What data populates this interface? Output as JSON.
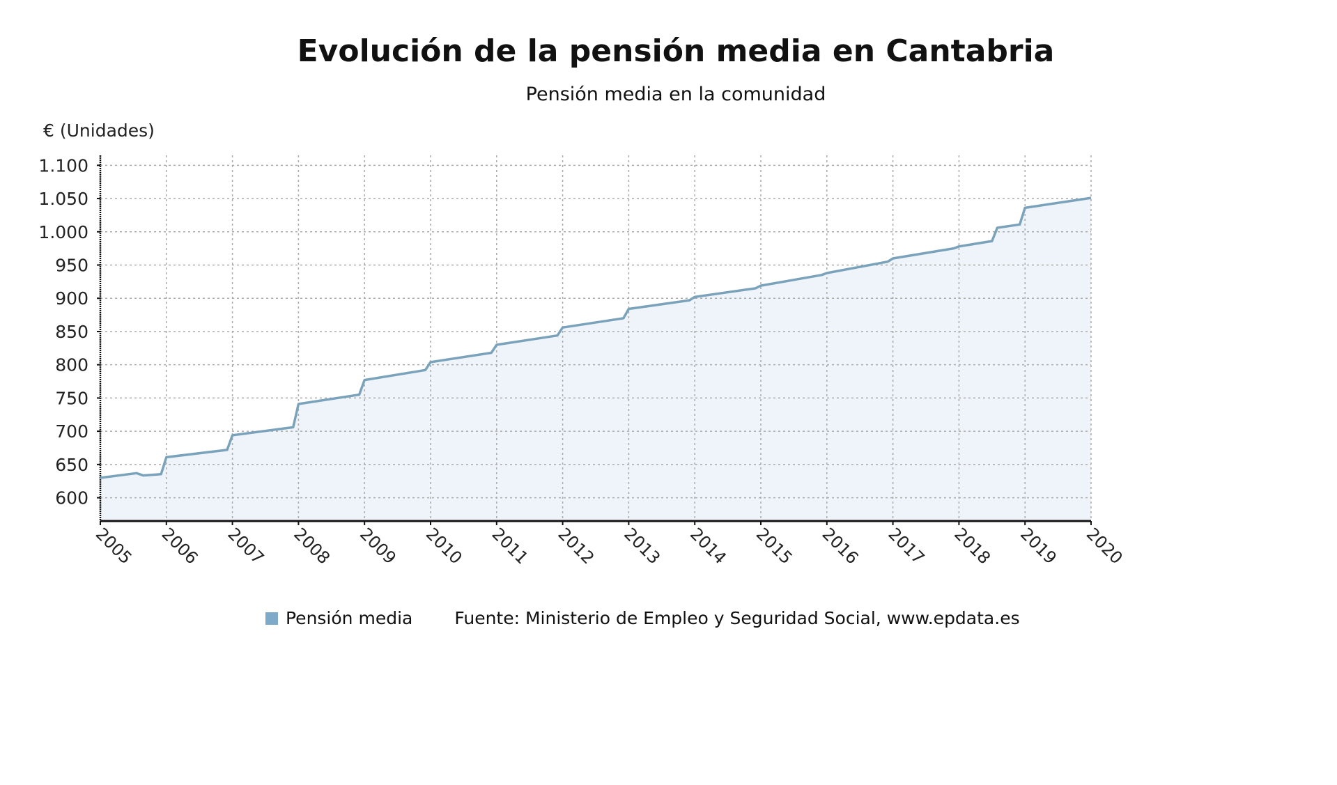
{
  "chart_data": {
    "type": "area",
    "title": "Evolución de la pensión media en Cantabria",
    "subtitle": "Pensión media en la comunidad",
    "ylabel": "€ (Unidades)",
    "xlabel": "",
    "ylim": [
      565,
      1115
    ],
    "xlim": [
      2005,
      2020
    ],
    "yticks": [
      600,
      650,
      700,
      750,
      800,
      850,
      900,
      950,
      1000,
      1050,
      1100
    ],
    "ytick_labels": [
      "600",
      "650",
      "700",
      "750",
      "800",
      "850",
      "900",
      "950",
      "1.000",
      "1.050",
      "1.100"
    ],
    "xticks": [
      "2005",
      "2006",
      "2007",
      "2008",
      "2009",
      "2010",
      "2011",
      "2012",
      "2013",
      "2014",
      "2015",
      "2016",
      "2017",
      "2018",
      "2019",
      "2020"
    ],
    "grid": true,
    "legend_position": "bottom",
    "colors": {
      "line": "#7aa3bb",
      "fill": "#eef4f9",
      "legend": "#7fa9c8"
    },
    "series": [
      {
        "name": "Pensión media",
        "x": [
          2005.0,
          2005.55,
          2005.65,
          2005.92,
          2006.0,
          2006.92,
          2007.0,
          2007.92,
          2008.0,
          2008.92,
          2009.0,
          2009.92,
          2010.0,
          2010.92,
          2011.0,
          2011.92,
          2012.0,
          2012.92,
          2013.0,
          2013.92,
          2014.0,
          2014.92,
          2015.0,
          2015.92,
          2016.0,
          2016.92,
          2017.0,
          2017.92,
          2018.0,
          2018.5,
          2018.58,
          2018.92,
          2019.0,
          2020.0
        ],
        "values": [
          630,
          637,
          633.5,
          635.5,
          661,
          672,
          694,
          706,
          741,
          755,
          777,
          792,
          804,
          818,
          830,
          844,
          856,
          870,
          884,
          897,
          902,
          915,
          919,
          935,
          938,
          955,
          960,
          975,
          978,
          986,
          1006,
          1011,
          1036,
          1051
        ]
      }
    ],
    "legend": "Pensión media",
    "source": "Fuente: Ministerio de Empleo y Seguridad Social, www.epdata.es"
  }
}
